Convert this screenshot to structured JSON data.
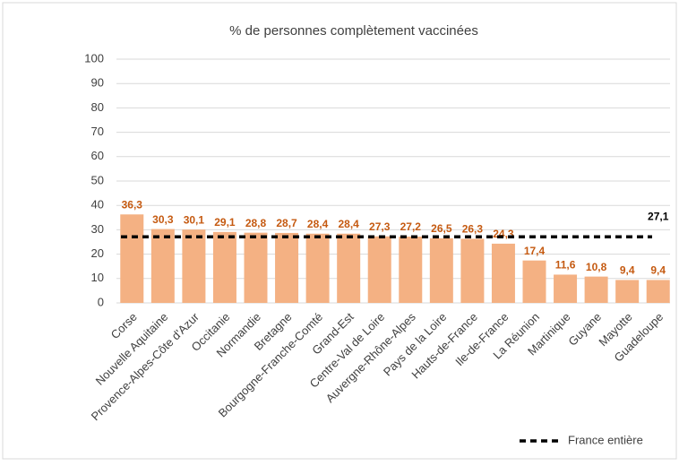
{
  "chart_data": {
    "type": "bar",
    "title": "% de personnes complètement vaccinées",
    "categories": [
      "Corse",
      "Nouvelle Aquitaine",
      "Provence-Alpes-Côte d'Azur",
      "Occitanie",
      "Normandie",
      "Bretagne",
      "Bourgogne-Franche-Comté",
      "Grand-Est",
      "Centre-Val de Loire",
      "Auvergne-Rhône-Alpes",
      "Pays de la Loire",
      "Hauts-de-France",
      "Ile-de-France",
      "La Réunion",
      "Martinique",
      "Guyane",
      "Mayotte",
      "Guadeloupe"
    ],
    "values": [
      36.3,
      30.3,
      30.1,
      29.1,
      28.8,
      28.7,
      28.4,
      28.4,
      27.3,
      27.2,
      26.5,
      26.3,
      24.3,
      17.4,
      11.6,
      10.8,
      9.4,
      9.4
    ],
    "value_labels": [
      "36,3",
      "30,3",
      "30,1",
      "29,1",
      "28,8",
      "28,7",
      "28,4",
      "28,4",
      "27,3",
      "27,2",
      "26,5",
      "26,3",
      "24,3",
      "17,4",
      "11,6",
      "10,8",
      "9,4",
      "9,4"
    ],
    "color": "#f4b183",
    "label_color": "#c55a11",
    "reference": {
      "name": "France entière",
      "value": 27.1,
      "value_label": "27,1",
      "color": "#000000"
    },
    "ylim": [
      0,
      100
    ],
    "yticks": [
      0,
      10,
      20,
      30,
      40,
      50,
      60,
      70,
      80,
      90,
      100
    ],
    "grid": true,
    "legend": "bottom-right"
  }
}
